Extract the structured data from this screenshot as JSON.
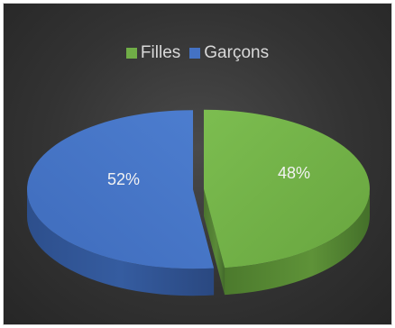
{
  "chart_data": {
    "type": "pie",
    "categories": [
      "Filles",
      "Garçons"
    ],
    "values": [
      48,
      52
    ],
    "labels": [
      "48%",
      "52%"
    ],
    "colors": [
      "#70ad47",
      "#4472c4"
    ],
    "legend": "top"
  },
  "legend": {
    "items": [
      {
        "label": "Filles",
        "color": "#70ad47"
      },
      {
        "label": "Garçons",
        "color": "#4472c4"
      }
    ]
  }
}
